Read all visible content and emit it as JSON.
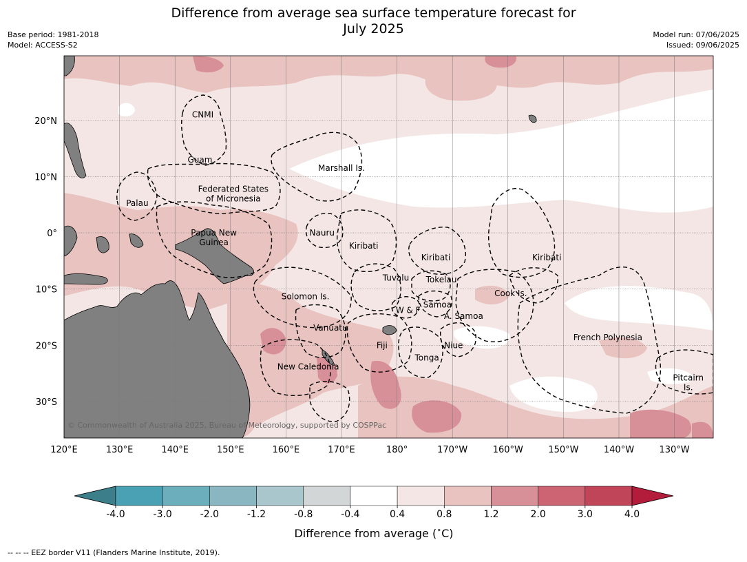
{
  "title_line1": "Difference from average sea surface temperature forecast for",
  "title_line2": "July 2025",
  "meta_left": {
    "base_period": "Base period: 1981-2018",
    "model": "Model: ACCESS-S2"
  },
  "meta_right": {
    "model_run": "Model run: 07/06/2025",
    "issued": "Issued: 09/06/2025"
  },
  "map": {
    "lon_range": [
      120,
      237
    ],
    "lat_range": [
      -36.5,
      31.5
    ],
    "lon_ticks": [
      {
        "lon": 120,
        "label": "120°E"
      },
      {
        "lon": 130,
        "label": "130°E"
      },
      {
        "lon": 140,
        "label": "140°E"
      },
      {
        "lon": 150,
        "label": "150°E"
      },
      {
        "lon": 160,
        "label": "160°E"
      },
      {
        "lon": 170,
        "label": "170°E"
      },
      {
        "lon": 180,
        "label": "180°"
      },
      {
        "lon": 190,
        "label": "170°W"
      },
      {
        "lon": 200,
        "label": "160°W"
      },
      {
        "lon": 210,
        "label": "150°W"
      },
      {
        "lon": 220,
        "label": "140°W"
      },
      {
        "lon": 230,
        "label": "130°W"
      }
    ],
    "lat_ticks": [
      {
        "lat": 20,
        "label": "20°N"
      },
      {
        "lat": 10,
        "label": "10°N"
      },
      {
        "lat": 0,
        "label": "0°"
      },
      {
        "lat": -10,
        "label": "10°S"
      },
      {
        "lat": -20,
        "label": "20°S"
      },
      {
        "lat": -30,
        "label": "30°S"
      }
    ],
    "regions": [
      {
        "name": "CNMI",
        "lon": 145,
        "lat": 21
      },
      {
        "name": "Guam",
        "lon": 144.5,
        "lat": 13
      },
      {
        "name": "Marshall Is.",
        "lon": 170,
        "lat": 11.5
      },
      {
        "name": "Federated States",
        "lon": 150.5,
        "lat": 7.8
      },
      {
        "name": "of Micronesia",
        "lon": 150.5,
        "lat": 6.1
      },
      {
        "name": "Palau",
        "lon": 133.2,
        "lat": 5.3
      },
      {
        "name": "Papua New",
        "lon": 147,
        "lat": 0
      },
      {
        "name": "Guinea",
        "lon": 147,
        "lat": -1.7
      },
      {
        "name": "Nauru",
        "lon": 166.5,
        "lat": 0
      },
      {
        "name": "Kiribati",
        "lon": 174,
        "lat": -2.3
      },
      {
        "name": "Kiribati",
        "lon": 187,
        "lat": -4.4
      },
      {
        "name": "Kiribati",
        "lon": 207,
        "lat": -4.4
      },
      {
        "name": "Tuvalu",
        "lon": 179.8,
        "lat": -8
      },
      {
        "name": "Tokelau",
        "lon": 188,
        "lat": -8.3
      },
      {
        "name": "Cook Is.",
        "lon": 200.5,
        "lat": -10.8
      },
      {
        "name": "Solomon Is.",
        "lon": 163.5,
        "lat": -11.3
      },
      {
        "name": "Samoa",
        "lon": 187.3,
        "lat": -12.8
      },
      {
        "name": "W & F",
        "lon": 182,
        "lat": -13.8
      },
      {
        "name": "A. Samoa",
        "lon": 192,
        "lat": -14.8
      },
      {
        "name": "Vanuatu",
        "lon": 168,
        "lat": -16.9
      },
      {
        "name": "Fiji",
        "lon": 177.3,
        "lat": -20
      },
      {
        "name": "Niue",
        "lon": 190.2,
        "lat": -20
      },
      {
        "name": "French Polynesia",
        "lon": 218,
        "lat": -18.6
      },
      {
        "name": "Tonga",
        "lon": 185.4,
        "lat": -22.2
      },
      {
        "name": "New Caledonia",
        "lon": 164,
        "lat": -23.8
      },
      {
        "name": "Pitcairn",
        "lon": 232.5,
        "lat": -25.8
      },
      {
        "name": "Is.",
        "lon": 232.5,
        "lat": -27.5
      }
    ],
    "copyright": "© Commonwealth of Australia 2025, Bureau of Meteorology, supported by COSPPac"
  },
  "colorbar": {
    "colors": [
      "#3c7f8a",
      "#4aa1b3",
      "#6daebd",
      "#8ab6c1",
      "#a9c6cc",
      "#d2d6d6",
      "#ffffff",
      "#f4e6e5",
      "#e8c3c0",
      "#d78f98",
      "#cc6473",
      "#c14558",
      "#b31c3a"
    ],
    "tick_labels": [
      "-4.0",
      "-3.0",
      "-2.0",
      "-1.2",
      "-0.8",
      "-0.4",
      "0.4",
      "0.8",
      "1.2",
      "2.0",
      "3.0",
      "4.0"
    ],
    "title": "Difference from average (",
    "title_degree": "∘",
    "title_unit": "C)"
  },
  "colors": {
    "land": "#808080",
    "c_0_4": "#f4e6e5",
    "c_0_8": "#e8c3c0",
    "c_1_2": "#d78f98",
    "c_2_0": "#cc6473"
  },
  "footer": "--  --  -- EEZ border V11 (Flanders Marine Institute, 2019)."
}
